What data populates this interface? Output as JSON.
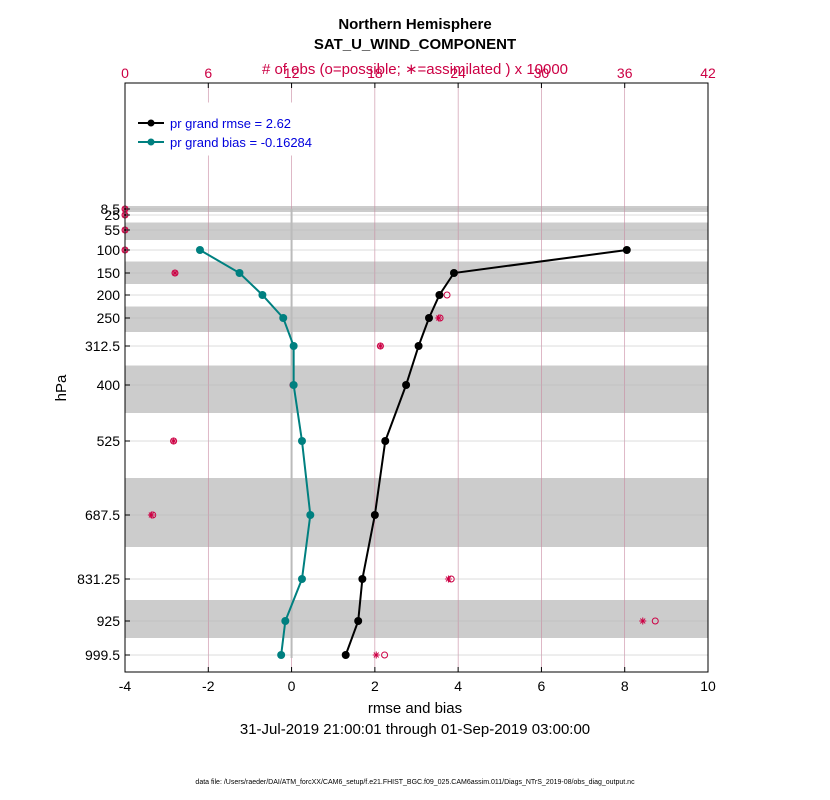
{
  "chart_data": {
    "type": "line",
    "title": "Northern Hemisphere",
    "subtitle": "SAT_U_WIND_COMPONENT",
    "top_axis_label": "# of obs (o=possible; ∗=assimilated ) x 10000",
    "xlabel": "rmse and bias",
    "ylabel": "hPa",
    "date_range": "31-Jul-2019 21:00:01 through 01-Sep-2019 03:00:00",
    "footer": "data file: /Users/raeder/DAI/ATM_forcXX/CAM6_setup/f.e21.FHIST_BGC.f09_025.CAM6assim.011/Diags_NTrS_2019-08/obs_diag_output.nc",
    "xlim": [
      -4,
      10
    ],
    "x_ticks": [
      "-4",
      "-2",
      "0",
      "2",
      "4",
      "6",
      "8",
      "10"
    ],
    "top_xlim": [
      0,
      42
    ],
    "top_ticks": [
      "0",
      "6",
      "12",
      "18",
      "24",
      "30",
      "36",
      "42"
    ],
    "levels": [
      8.5,
      25,
      55,
      100,
      150,
      200,
      250,
      312.5,
      400,
      525,
      687.5,
      831.25,
      925,
      999.5
    ],
    "level_labels": [
      "8.5",
      "25",
      "55",
      "100",
      "150",
      "200",
      "250",
      "312.5",
      "400",
      "525",
      "687.5",
      "831.25",
      "925",
      "999.5"
    ],
    "series": [
      {
        "name": "rmse",
        "legend": "pr grand rmse = 2.62",
        "color": "#000000",
        "values": [
          null,
          null,
          null,
          8.05,
          3.9,
          3.55,
          3.3,
          3.05,
          2.75,
          2.25,
          2.0,
          1.7,
          1.6,
          1.3
        ]
      },
      {
        "name": "bias",
        "legend": "pr grand bias = -0.16284",
        "color": "#008080",
        "values": [
          null,
          null,
          null,
          -2.2,
          -1.25,
          -0.7,
          -0.2,
          0.05,
          0.05,
          0.25,
          0.45,
          0.25,
          -0.15,
          -0.25
        ]
      }
    ],
    "obs_possible": [
      0,
      0,
      0,
      0,
      3.6,
      23.2,
      22.7,
      18.4,
      12.1,
      3.5,
      2.0,
      23.5,
      38.2,
      18.7
    ],
    "obs_assimilated": [
      0,
      0,
      0,
      0,
      3.6,
      22.7,
      22.6,
      18.4,
      12.1,
      3.5,
      1.9,
      23.3,
      37.3,
      18.1
    ],
    "colors": {
      "obs": "#cc0044",
      "band": "#cccccc",
      "grid": "#c88aa0",
      "zero_line": "#bbbbbb"
    }
  }
}
